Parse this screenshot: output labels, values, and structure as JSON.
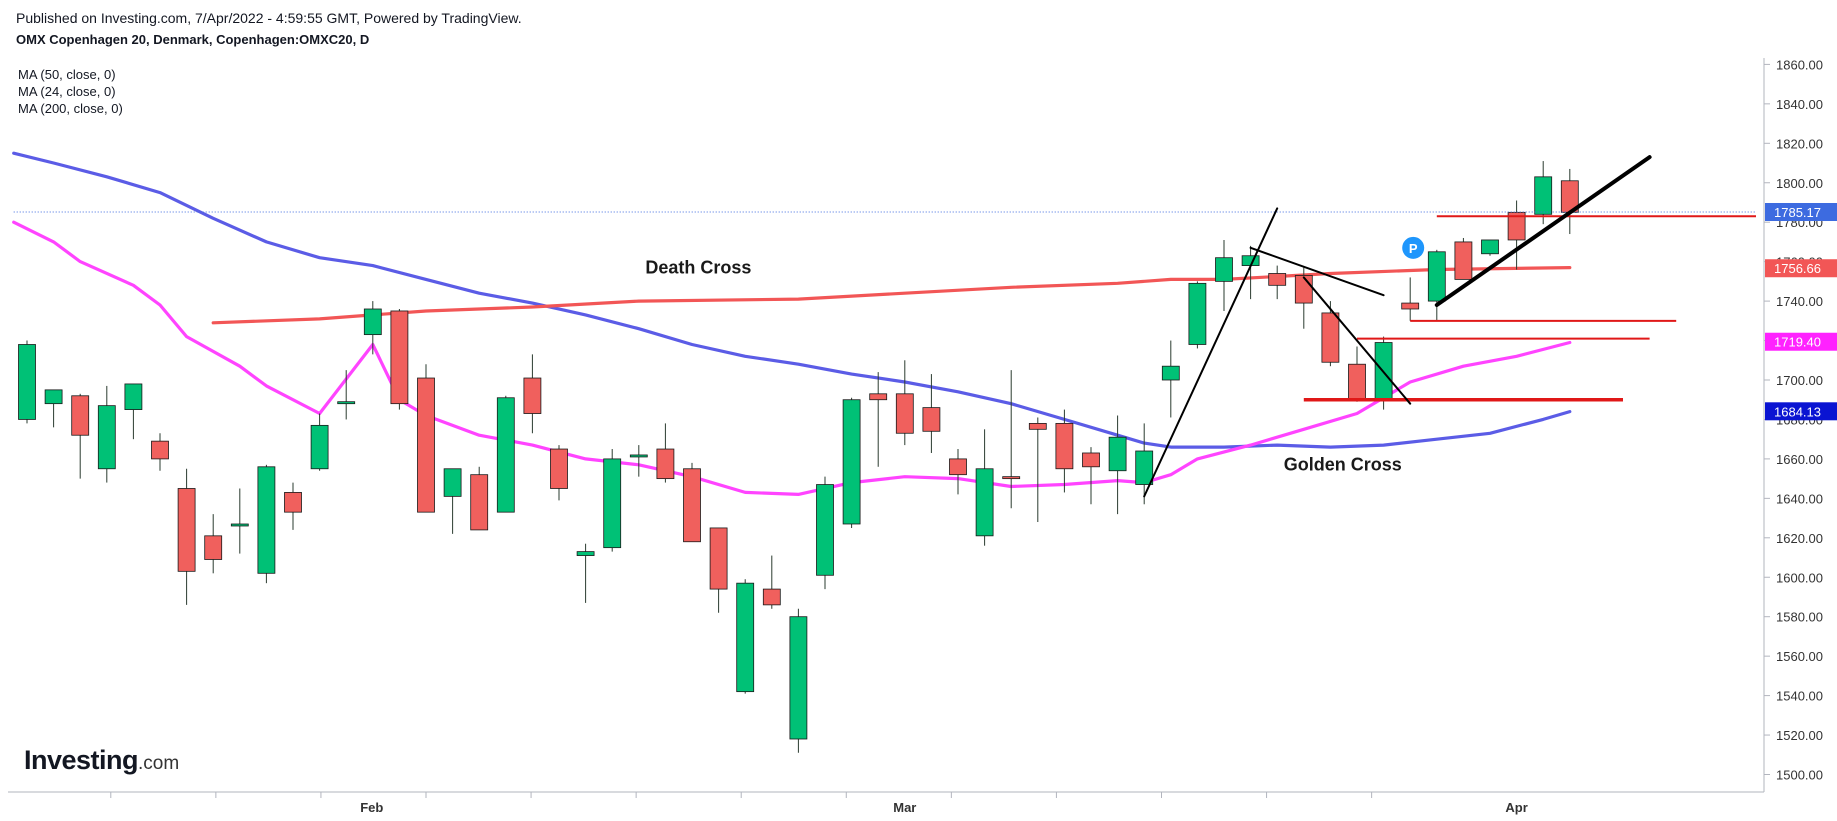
{
  "header": {
    "published": "Published on Investing.com, 7/Apr/2022 - 4:59:55 GMT, Powered by TradingView.",
    "symbol": "OMX Copenhagen 20, Denmark, Copenhagen:OMXC20, D"
  },
  "legend": [
    "MA (50, close, 0)",
    "MA (24, close, 0)",
    "MA (200, close, 0)"
  ],
  "logo": {
    "main": "Investing",
    "suffix": ".com"
  },
  "colors": {
    "up": "#00c176",
    "down": "#f0605d",
    "ma50": "#5b5ce6",
    "ma24": "#ff44ff",
    "ma200": "#f25656",
    "last": "#3d6be0",
    "red_level": "#e01818",
    "trend": "#000000"
  },
  "chart_data": {
    "type": "candlestick",
    "title": "OMX Copenhagen 20, Denmark, Copenhagen:OMXC20, D",
    "ylim": [
      1490,
      1865
    ],
    "y_ticks": [
      "1500.00",
      "1520.00",
      "1540.00",
      "1560.00",
      "1580.00",
      "1600.00",
      "1620.00",
      "1640.00",
      "1660.00",
      "1680.00",
      "1700.00",
      "1720.00",
      "1740.00",
      "1760.00",
      "1780.00",
      "1800.00",
      "1820.00",
      "1840.00",
      "1860.00"
    ],
    "x_labels": [
      {
        "label": "Feb",
        "index": 13
      },
      {
        "label": "Mar",
        "index": 33
      },
      {
        "label": "Apr",
        "index": 56
      }
    ],
    "candles": [
      {
        "o": 1680,
        "h": 1720,
        "l": 1678,
        "c": 1718
      },
      {
        "o": 1688,
        "h": 1695,
        "l": 1676,
        "c": 1695
      },
      {
        "o": 1692,
        "h": 1693,
        "l": 1650,
        "c": 1672
      },
      {
        "o": 1655,
        "h": 1697,
        "l": 1648,
        "c": 1687
      },
      {
        "o": 1685,
        "h": 1698,
        "l": 1670,
        "c": 1698
      },
      {
        "o": 1669,
        "h": 1673,
        "l": 1654,
        "c": 1660
      },
      {
        "o": 1645,
        "h": 1655,
        "l": 1586,
        "c": 1603
      },
      {
        "o": 1621,
        "h": 1632,
        "l": 1602,
        "c": 1609
      },
      {
        "o": 1626,
        "h": 1645,
        "l": 1612,
        "c": 1627
      },
      {
        "o": 1602,
        "h": 1657,
        "l": 1597,
        "c": 1656
      },
      {
        "o": 1643,
        "h": 1648,
        "l": 1624,
        "c": 1633
      },
      {
        "o": 1655,
        "h": 1683,
        "l": 1654,
        "c": 1677
      },
      {
        "o": 1688,
        "h": 1705,
        "l": 1680,
        "c": 1689
      },
      {
        "o": 1723,
        "h": 1740,
        "l": 1713,
        "c": 1736
      },
      {
        "o": 1735,
        "h": 1736,
        "l": 1685,
        "c": 1688
      },
      {
        "o": 1701,
        "h": 1708,
        "l": 1633,
        "c": 1633
      },
      {
        "o": 1641,
        "h": 1655,
        "l": 1622,
        "c": 1655
      },
      {
        "o": 1652,
        "h": 1656,
        "l": 1624,
        "c": 1624
      },
      {
        "o": 1633,
        "h": 1692,
        "l": 1633,
        "c": 1691
      },
      {
        "o": 1701,
        "h": 1713,
        "l": 1673,
        "c": 1683
      },
      {
        "o": 1665,
        "h": 1667,
        "l": 1639,
        "c": 1645
      },
      {
        "o": 1611,
        "h": 1617,
        "l": 1587,
        "c": 1613
      },
      {
        "o": 1615,
        "h": 1665,
        "l": 1613,
        "c": 1660
      },
      {
        "o": 1662,
        "h": 1667,
        "l": 1651,
        "c": 1662
      },
      {
        "o": 1665,
        "h": 1678,
        "l": 1648,
        "c": 1650
      },
      {
        "o": 1655,
        "h": 1658,
        "l": 1618,
        "c": 1618
      },
      {
        "o": 1625,
        "h": 1625,
        "l": 1582,
        "c": 1594
      },
      {
        "o": 1542,
        "h": 1599,
        "l": 1541,
        "c": 1597
      },
      {
        "o": 1594,
        "h": 1611,
        "l": 1584,
        "c": 1586
      },
      {
        "o": 1518,
        "h": 1584,
        "l": 1511,
        "c": 1580
      },
      {
        "o": 1601,
        "h": 1651,
        "l": 1594,
        "c": 1647
      },
      {
        "o": 1627,
        "h": 1691,
        "l": 1625,
        "c": 1690
      },
      {
        "o": 1693,
        "h": 1704,
        "l": 1656,
        "c": 1690
      },
      {
        "o": 1693,
        "h": 1710,
        "l": 1667,
        "c": 1673
      },
      {
        "o": 1686,
        "h": 1703,
        "l": 1663,
        "c": 1674
      },
      {
        "o": 1660,
        "h": 1665,
        "l": 1642,
        "c": 1652
      },
      {
        "o": 1621,
        "h": 1675,
        "l": 1616,
        "c": 1655
      },
      {
        "o": 1651,
        "h": 1705,
        "l": 1635,
        "c": 1650
      },
      {
        "o": 1678,
        "h": 1681,
        "l": 1628,
        "c": 1675
      },
      {
        "o": 1678,
        "h": 1685,
        "l": 1643,
        "c": 1655
      },
      {
        "o": 1663,
        "h": 1666,
        "l": 1637,
        "c": 1656
      },
      {
        "o": 1654,
        "h": 1682,
        "l": 1632,
        "c": 1671
      },
      {
        "o": 1647,
        "h": 1678,
        "l": 1637,
        "c": 1664
      },
      {
        "o": 1700,
        "h": 1720,
        "l": 1681,
        "c": 1707
      },
      {
        "o": 1718,
        "h": 1750,
        "l": 1716,
        "c": 1749
      },
      {
        "o": 1750,
        "h": 1771,
        "l": 1735,
        "c": 1762
      },
      {
        "o": 1758,
        "h": 1768,
        "l": 1741,
        "c": 1763
      },
      {
        "o": 1754,
        "h": 1758,
        "l": 1741,
        "c": 1748
      },
      {
        "o": 1753,
        "h": 1757,
        "l": 1726,
        "c": 1739
      },
      {
        "o": 1734,
        "h": 1740,
        "l": 1707,
        "c": 1709
      },
      {
        "o": 1708,
        "h": 1717,
        "l": 1689,
        "c": 1690
      },
      {
        "o": 1690,
        "h": 1722,
        "l": 1685,
        "c": 1719
      },
      {
        "o": 1739,
        "h": 1752,
        "l": 1730,
        "c": 1736
      },
      {
        "o": 1740,
        "h": 1766,
        "l": 1730,
        "c": 1765
      },
      {
        "o": 1770,
        "h": 1772,
        "l": 1752,
        "c": 1751
      },
      {
        "o": 1764,
        "h": 1771,
        "l": 1763,
        "c": 1771
      },
      {
        "o": 1785,
        "h": 1791,
        "l": 1756,
        "c": 1771
      },
      {
        "o": 1784,
        "h": 1811,
        "l": 1779,
        "c": 1803
      },
      {
        "o": 1801,
        "h": 1807,
        "l": 1774,
        "c": 1785
      }
    ],
    "series": [
      {
        "name": "MA (50, close, 0)",
        "color": "#5b5ce6",
        "points": [
          [
            -0.5,
            1815
          ],
          [
            1,
            1810
          ],
          [
            3,
            1803
          ],
          [
            5,
            1795
          ],
          [
            7,
            1782
          ],
          [
            9,
            1770
          ],
          [
            11,
            1762
          ],
          [
            13,
            1758
          ],
          [
            15,
            1751
          ],
          [
            17,
            1744
          ],
          [
            19,
            1739
          ],
          [
            21,
            1733
          ],
          [
            23,
            1726
          ],
          [
            25,
            1718
          ],
          [
            27,
            1712
          ],
          [
            29,
            1708
          ],
          [
            31,
            1703
          ],
          [
            33,
            1699
          ],
          [
            35,
            1694
          ],
          [
            37,
            1688
          ],
          [
            39,
            1680
          ],
          [
            41,
            1672
          ],
          [
            42,
            1668
          ],
          [
            43,
            1666
          ],
          [
            45,
            1666
          ],
          [
            47,
            1667
          ],
          [
            49,
            1666
          ],
          [
            51,
            1667
          ],
          [
            53,
            1670
          ],
          [
            55,
            1673
          ],
          [
            57,
            1680
          ],
          [
            58,
            1684
          ]
        ]
      },
      {
        "name": "MA (24, close, 0)",
        "color": "#ff44ff",
        "points": [
          [
            -0.5,
            1780
          ],
          [
            1,
            1770
          ],
          [
            2,
            1760
          ],
          [
            4,
            1748
          ],
          [
            5,
            1738
          ],
          [
            6,
            1722
          ],
          [
            8,
            1707
          ],
          [
            9,
            1697
          ],
          [
            11,
            1683
          ],
          [
            13,
            1718
          ],
          [
            14,
            1690
          ],
          [
            15,
            1682
          ],
          [
            17,
            1672
          ],
          [
            19,
            1667
          ],
          [
            21,
            1660
          ],
          [
            23,
            1657
          ],
          [
            25,
            1651
          ],
          [
            27,
            1643
          ],
          [
            29,
            1642
          ],
          [
            31,
            1648
          ],
          [
            33,
            1651
          ],
          [
            35,
            1650
          ],
          [
            37,
            1646
          ],
          [
            39,
            1647
          ],
          [
            41,
            1649
          ],
          [
            42,
            1648
          ],
          [
            43,
            1652
          ],
          [
            44,
            1660
          ],
          [
            46,
            1667
          ],
          [
            48,
            1675
          ],
          [
            50,
            1683
          ],
          [
            52,
            1699
          ],
          [
            54,
            1707
          ],
          [
            56,
            1712
          ],
          [
            58,
            1719
          ]
        ]
      },
      {
        "name": "MA (200, close, 0)",
        "color": "#f25656",
        "points": [
          [
            7,
            1729
          ],
          [
            11,
            1731
          ],
          [
            13,
            1733
          ],
          [
            15,
            1735
          ],
          [
            19,
            1737
          ],
          [
            23,
            1740
          ],
          [
            29,
            1741
          ],
          [
            33,
            1744
          ],
          [
            37,
            1747
          ],
          [
            41,
            1749
          ],
          [
            43,
            1751
          ],
          [
            45,
            1751
          ],
          [
            49,
            1754
          ],
          [
            53,
            1756
          ],
          [
            58,
            1757
          ]
        ]
      }
    ],
    "price_labels": [
      {
        "value": 1785.17,
        "text": "1785.17",
        "color": "#3d6be0"
      },
      {
        "value": 1756.66,
        "text": "1756.66",
        "color": "#f25656"
      },
      {
        "value": 1719.4,
        "text": "1719.40",
        "color": "#ff22ff"
      },
      {
        "value": 1684.13,
        "text": "1684.13",
        "color": "#0a14d2"
      }
    ],
    "annotations": [
      {
        "text": "Death Cross",
        "x": 24,
        "y": 1754
      },
      {
        "text": "Golden Cross",
        "x": 48,
        "y": 1654
      }
    ],
    "hlines": [
      {
        "value": 1785.17,
        "from": -0.5,
        "to": 65,
        "color": "#3d6be0",
        "style": "dotted"
      },
      {
        "value": 1783,
        "from": 53,
        "to": 65,
        "color": "#e01818",
        "style": "solid"
      },
      {
        "value": 1730,
        "from": 52,
        "to": 62,
        "color": "#e01818",
        "style": "solid"
      },
      {
        "value": 1721,
        "from": 50,
        "to": 61,
        "color": "#e01818",
        "style": "solid"
      },
      {
        "value": 1690,
        "from": 48,
        "to": 60,
        "color": "#e01818",
        "style": "thick"
      }
    ],
    "trendlines": [
      {
        "x1": 42,
        "y1": 1641,
        "x2": 47,
        "y2": 1787,
        "width": 2
      },
      {
        "x1": 46,
        "y1": 1767,
        "x2": 51,
        "y2": 1743,
        "width": 2
      },
      {
        "x1": 48,
        "y1": 1752,
        "x2": 52,
        "y2": 1688,
        "width": 2
      },
      {
        "x1": 53,
        "y1": 1738,
        "x2": 61,
        "y2": 1813,
        "width": 4
      }
    ],
    "marker": {
      "text": "P",
      "x": 52,
      "y": 1767,
      "color": "#1e96fc"
    }
  }
}
